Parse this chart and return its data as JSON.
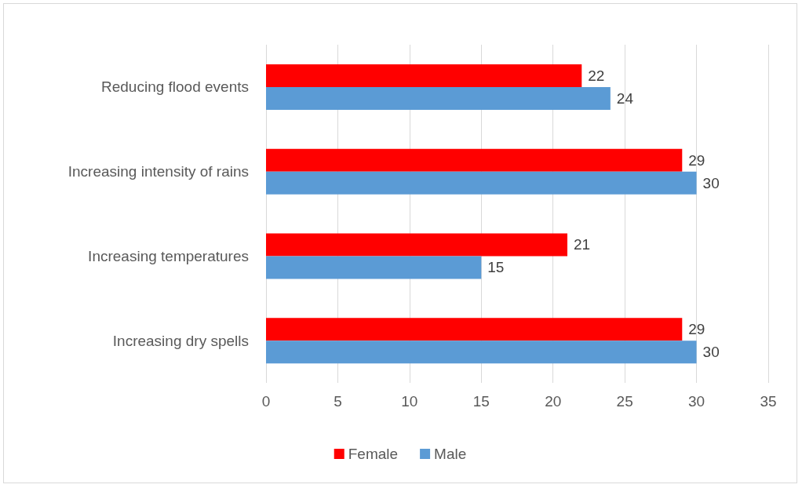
{
  "chart_data": {
    "type": "bar",
    "orientation": "horizontal",
    "categories": [
      "Reducing flood events",
      "Increasing intensity of rains",
      "Increasing temperatures",
      "Increasing dry spells"
    ],
    "series": [
      {
        "name": "Female",
        "color": "#ff0000",
        "values": [
          22,
          29,
          21,
          29
        ]
      },
      {
        "name": "Male",
        "color": "#5b9bd5",
        "values": [
          24,
          30,
          15,
          30
        ]
      }
    ],
    "xlim": [
      0,
      35
    ],
    "xticks": [
      0,
      5,
      10,
      15,
      20,
      25,
      30,
      35
    ],
    "grid": "x",
    "legend": "bottom",
    "data_labels": true
  }
}
